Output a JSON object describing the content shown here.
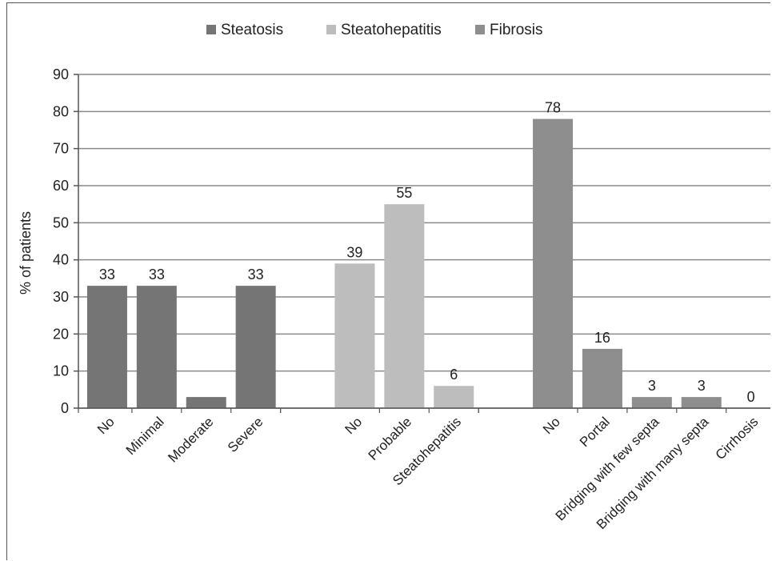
{
  "chart_data": {
    "type": "bar",
    "ylabel": "% of patients",
    "ylim": [
      0,
      90
    ],
    "yticks": [
      0,
      10,
      20,
      30,
      40,
      50,
      60,
      70,
      80,
      90
    ],
    "grid": true,
    "legend": {
      "placement": "top",
      "entries": [
        {
          "name": "Steatosis",
          "color": "#757575"
        },
        {
          "name": "Steatohepatitis",
          "color": "#bdbdbd"
        },
        {
          "name": "Fibrosis",
          "color": "#8e8e8e"
        }
      ]
    },
    "groups": [
      {
        "series": "Steatosis",
        "color": "#757575",
        "categories": [
          "No",
          "Minimal",
          "Moderate",
          "Severe"
        ],
        "values": [
          33,
          33,
          3,
          33
        ],
        "data_labels": [
          "33",
          "33",
          "",
          "33"
        ]
      },
      {
        "series": "Steatohepatitis",
        "color": "#bdbdbd",
        "categories": [
          "No",
          "Probable",
          "Steatohepatitis"
        ],
        "values": [
          39,
          55,
          6
        ],
        "data_labels": [
          "39",
          "55",
          "6"
        ]
      },
      {
        "series": "Fibrosis",
        "color": "#8e8e8e",
        "categories": [
          "No",
          "Portal",
          "Bridging with few septa",
          "Bridging with many septa",
          "Cirrhosis"
        ],
        "values": [
          78,
          16,
          3,
          3,
          0
        ],
        "data_labels": [
          "78",
          "16",
          "3",
          "3",
          "0"
        ]
      }
    ]
  }
}
